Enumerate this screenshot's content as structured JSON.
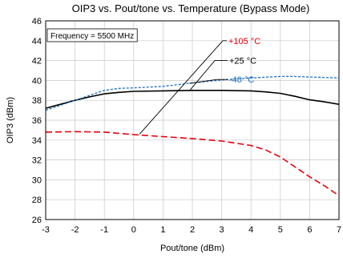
{
  "chart_data": {
    "type": "line",
    "title": "OIP3 vs. Pout/tone vs. Temperature (Bypass Mode)",
    "xlabel": "Pout/tone (dBm)",
    "ylabel": "OIP3 (dBm)",
    "xlim": [
      -3,
      7
    ],
    "ylim": [
      26,
      46
    ],
    "xticks": [
      -3,
      -2,
      -1,
      0,
      1,
      2,
      3,
      4,
      5,
      6,
      7
    ],
    "yticks": [
      26,
      28,
      30,
      32,
      34,
      36,
      38,
      40,
      42,
      44,
      46
    ],
    "grid": true,
    "annotation": "Frequency = 5500 MHz",
    "legend_position": "top-center",
    "series": [
      {
        "name": "+105 °C",
        "color": "#e8000b",
        "dash": "dashed",
        "x": [
          -3,
          -2,
          -1,
          0,
          1,
          2,
          3,
          4,
          4.5,
          5,
          5.5,
          6,
          6.5,
          7
        ],
        "y": [
          34.8,
          34.85,
          34.8,
          34.55,
          34.35,
          34.15,
          33.9,
          33.45,
          33.0,
          32.3,
          31.3,
          30.3,
          29.4,
          28.4
        ]
      },
      {
        "name": "+25 °C",
        "color": "#000000",
        "dash": "solid",
        "x": [
          -3,
          -2.5,
          -2,
          -1.5,
          -1,
          -0.5,
          0,
          1,
          2,
          3,
          4,
          4.5,
          5,
          5.5,
          6,
          6.5,
          7
        ],
        "y": [
          37.2,
          37.6,
          38.0,
          38.35,
          38.65,
          38.8,
          38.9,
          38.95,
          39.0,
          39.0,
          38.95,
          38.85,
          38.7,
          38.4,
          38.05,
          37.85,
          37.6
        ]
      },
      {
        "name": "-40 °C",
        "color": "#1f6fb8",
        "dash": "dotted",
        "x": [
          -3,
          -2.5,
          -2,
          -1.5,
          -1,
          -0.5,
          0,
          1,
          2,
          3,
          4,
          5,
          5.5,
          6,
          6.5,
          7
        ],
        "y": [
          37.0,
          37.5,
          38.0,
          38.5,
          39.0,
          39.2,
          39.25,
          39.4,
          39.75,
          40.05,
          40.25,
          40.4,
          40.4,
          40.35,
          40.3,
          40.25
        ]
      }
    ]
  }
}
